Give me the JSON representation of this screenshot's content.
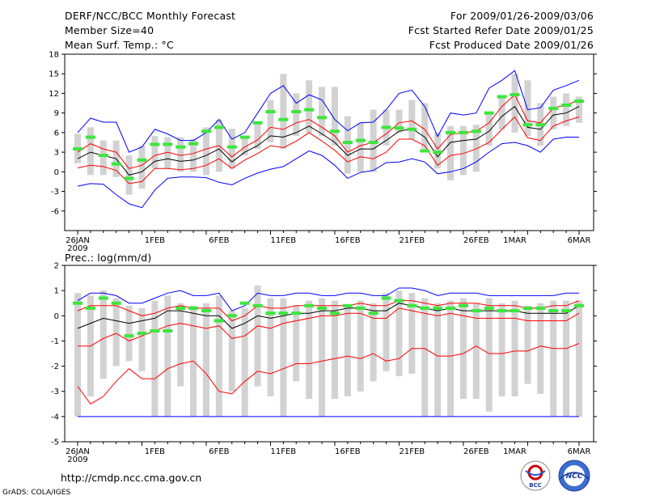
{
  "header": {
    "title": "DERF/NCC/BCC Monthly Forecast",
    "member_size": "Member Size=40",
    "period": "For 2009/01/26-2009/03/06",
    "refer_date": "Fcst Started Refer Date 2009/01/25",
    "produced_date": "Fcst Produced Date 2009/01/26"
  },
  "footer": {
    "url": "http://cmdp.ncc.cma.gov.cn",
    "credit": "GrADS: COLA/IGES",
    "logo_bcc_label": "BCC",
    "logo_ncc_label": "NCC"
  },
  "colors": {
    "max_line": "#0000ff",
    "mean_line": "#000000",
    "spread_line": "#ff0000",
    "box": "#d2d2d2",
    "marker": "#3ce63c"
  },
  "chart_data": [
    {
      "type": "line",
      "title": "Mean Surf. Temp.: °C",
      "x": [
        26,
        27,
        28,
        29,
        30,
        31,
        1,
        2,
        3,
        4,
        5,
        6,
        7,
        8,
        9,
        10,
        11,
        12,
        13,
        14,
        15,
        16,
        17,
        18,
        19,
        20,
        21,
        22,
        23,
        24,
        25,
        26,
        27,
        28,
        1,
        2,
        3,
        4,
        5,
        6
      ],
      "xtick_labels": [
        "26JAN",
        "1FEB",
        "6FEB",
        "11FEB",
        "16FEB",
        "21FEB",
        "26FEB",
        "1MAR",
        "6MAR"
      ],
      "xtick_sub": "2009",
      "ylim": [
        -9,
        18
      ],
      "yticks": [
        -6,
        -3,
        0,
        3,
        6,
        9,
        12,
        15,
        18
      ],
      "series": [
        {
          "name": "max",
          "values": [
            6.0,
            8.2,
            7.6,
            7.6,
            3.0,
            3.8,
            6.5,
            5.8,
            4.8,
            4.8,
            6.0,
            8.0,
            5.0,
            6.0,
            9.0,
            12.0,
            13.2,
            10.5,
            11.8,
            11.0,
            8.0,
            6.3,
            7.5,
            7.6,
            9.5,
            12.0,
            12.5,
            10.0,
            5.4,
            9.0,
            8.7,
            9.0,
            12.8,
            14.0,
            15.5,
            9.5,
            9.8,
            12.5,
            13.2,
            14.0
          ]
        },
        {
          "name": "upper",
          "values": [
            3.0,
            4.3,
            3.5,
            3.0,
            0.5,
            1.0,
            2.5,
            3.0,
            2.5,
            2.8,
            3.5,
            4.0,
            2.3,
            3.8,
            4.9,
            6.8,
            6.5,
            7.5,
            8.0,
            6.8,
            5.5,
            3.0,
            4.0,
            4.5,
            5.8,
            7.5,
            7.8,
            6.5,
            3.5,
            5.7,
            6.0,
            6.2,
            7.5,
            10.0,
            11.8,
            7.8,
            7.5,
            9.8,
            10.2,
            11.0
          ]
        },
        {
          "name": "mean",
          "values": [
            2.0,
            3.0,
            2.5,
            2.0,
            -0.5,
            0.0,
            1.6,
            2.0,
            1.6,
            1.8,
            2.5,
            3.5,
            1.5,
            3.0,
            4.0,
            5.5,
            5.3,
            6.0,
            7.0,
            5.8,
            4.5,
            2.5,
            3.5,
            3.5,
            4.8,
            6.2,
            6.6,
            5.3,
            2.3,
            4.5,
            4.8,
            5.0,
            6.2,
            8.5,
            10.0,
            6.8,
            6.5,
            8.7,
            9.0,
            10.0
          ]
        },
        {
          "name": "lower",
          "values": [
            0.6,
            1.0,
            0.8,
            0.2,
            -1.8,
            -1.5,
            0.5,
            0.5,
            0.3,
            0.5,
            1.0,
            2.0,
            0.5,
            1.8,
            2.8,
            4.0,
            3.7,
            4.7,
            6.0,
            4.7,
            3.3,
            1.5,
            2.3,
            2.0,
            3.0,
            5.0,
            5.0,
            4.0,
            1.0,
            2.5,
            2.8,
            3.5,
            4.5,
            6.5,
            8.4,
            5.2,
            4.8,
            7.0,
            7.8,
            8.4
          ]
        },
        {
          "name": "min",
          "values": [
            -2.2,
            -1.8,
            -1.9,
            -3.5,
            -4.9,
            -5.5,
            -2.8,
            -1.0,
            -0.8,
            -0.8,
            -0.9,
            -1.6,
            -2.0,
            -1.0,
            -0.2,
            0.4,
            0.8,
            2.0,
            3.2,
            2.5,
            1.0,
            -1.0,
            -0.1,
            0.2,
            1.4,
            1.5,
            2.0,
            1.5,
            -0.3,
            0.0,
            0.5,
            1.5,
            3.0,
            4.3,
            4.5,
            4.0,
            3.0,
            5.0,
            5.3,
            5.3
          ]
        },
        {
          "name": "box_high",
          "values": [
            5.8,
            6.8,
            4.8,
            4.8,
            2.5,
            4.0,
            5.5,
            5.3,
            5.3,
            5.0,
            6.8,
            8.0,
            6.6,
            5.3,
            7.5,
            11.0,
            15.0,
            12.0,
            14.0,
            13.0,
            13.0,
            8.5,
            7.5,
            9.5,
            9.5,
            9.5,
            11.0,
            10.5,
            6.0,
            7.0,
            7.0,
            7.2,
            9.0,
            11.5,
            15.0,
            14.0,
            10.5,
            11.5,
            12.0,
            11.5
          ]
        },
        {
          "name": "box_low",
          "values": [
            1.3,
            -0.5,
            -0.5,
            -0.8,
            -3.5,
            -2.6,
            0.5,
            0.5,
            0.0,
            0.0,
            -0.5,
            0.0,
            0.5,
            2.5,
            3.5,
            4.5,
            3.5,
            5.5,
            6.0,
            5.5,
            4.0,
            -0.3,
            0.0,
            0.0,
            4.0,
            6.0,
            5.0,
            3.5,
            0.5,
            -1.3,
            -0.5,
            0.0,
            4.0,
            6.5,
            6.0,
            5.5,
            4.0,
            6.5,
            7.0,
            7.5
          ]
        },
        {
          "name": "marker",
          "values": [
            3.5,
            5.3,
            2.5,
            1.2,
            -1.0,
            1.8,
            4.2,
            4.2,
            3.8,
            4.3,
            6.2,
            6.8,
            3.8,
            5.3,
            7.5,
            9.2,
            8.0,
            9.2,
            9.5,
            8.3,
            6.2,
            4.5,
            4.8,
            4.5,
            6.8,
            6.7,
            6.5,
            3.2,
            3.0,
            6.0,
            6.0,
            6.2,
            9.0,
            11.5,
            11.8,
            7.2,
            7.2,
            9.7,
            10.2,
            10.8
          ]
        }
      ]
    },
    {
      "type": "line",
      "title": "Prec.: log(mm/d)",
      "x": [
        26,
        27,
        28,
        29,
        30,
        31,
        1,
        2,
        3,
        4,
        5,
        6,
        7,
        8,
        9,
        10,
        11,
        12,
        13,
        14,
        15,
        16,
        17,
        18,
        19,
        20,
        21,
        22,
        23,
        24,
        25,
        26,
        27,
        28,
        1,
        2,
        3,
        4,
        5,
        6
      ],
      "xtick_labels": [
        "26JAN",
        "1FEB",
        "6FEB",
        "11FEB",
        "16FEB",
        "21FEB",
        "26FEB",
        "1MAR",
        "6MAR"
      ],
      "xtick_sub": "2009",
      "ylim": [
        -5,
        2
      ],
      "yticks": [
        -5,
        -4,
        -3,
        -2,
        -1,
        0,
        1,
        2
      ],
      "series": [
        {
          "name": "max",
          "values": [
            0.6,
            0.9,
            0.9,
            0.8,
            0.5,
            0.5,
            0.7,
            0.9,
            1.0,
            0.8,
            0.8,
            0.9,
            0.2,
            0.4,
            0.9,
            0.8,
            0.8,
            0.9,
            0.9,
            0.8,
            0.8,
            0.9,
            0.9,
            0.8,
            0.8,
            1.1,
            1.1,
            1.0,
            0.8,
            0.9,
            0.9,
            0.9,
            0.8,
            0.8,
            0.8,
            0.8,
            0.8,
            0.8,
            0.9,
            0.9
          ]
        },
        {
          "name": "upper",
          "values": [
            0.2,
            0.4,
            0.4,
            0.4,
            0.2,
            0.0,
            0.1,
            0.3,
            0.4,
            0.3,
            0.3,
            0.3,
            -0.2,
            0.0,
            0.4,
            0.3,
            0.3,
            0.4,
            0.4,
            0.4,
            0.4,
            0.4,
            0.5,
            0.4,
            0.4,
            0.6,
            0.6,
            0.5,
            0.4,
            0.5,
            0.5,
            0.5,
            0.4,
            0.4,
            0.4,
            0.3,
            0.3,
            0.4,
            0.4,
            0.6
          ]
        },
        {
          "name": "mean",
          "values": [
            -0.5,
            -0.3,
            -0.1,
            -0.2,
            -0.3,
            -0.2,
            -0.1,
            0.2,
            0.2,
            0.1,
            0.0,
            0.0,
            -0.5,
            -0.3,
            0.0,
            -0.1,
            0.0,
            0.1,
            0.1,
            0.2,
            0.2,
            0.3,
            0.3,
            0.2,
            0.2,
            0.5,
            0.4,
            0.3,
            0.2,
            0.3,
            0.2,
            0.2,
            0.2,
            0.2,
            0.2,
            0.1,
            0.1,
            0.1,
            0.1,
            0.4
          ]
        },
        {
          "name": "lower",
          "values": [
            -1.2,
            -1.2,
            -0.9,
            -0.7,
            -1.0,
            -0.8,
            -0.6,
            -0.4,
            -0.3,
            -0.4,
            -0.5,
            -0.4,
            -0.9,
            -0.8,
            -0.4,
            -0.5,
            -0.3,
            -0.2,
            -0.1,
            0.0,
            0.0,
            0.1,
            0.1,
            -0.1,
            -0.1,
            0.3,
            0.2,
            0.1,
            0.0,
            0.1,
            0.0,
            -0.1,
            -0.1,
            -0.1,
            -0.1,
            -0.2,
            -0.2,
            -0.2,
            -0.2,
            0.1
          ]
        },
        {
          "name": "min",
          "values": [
            -2.8,
            -3.5,
            -3.2,
            -2.6,
            -2.1,
            -2.5,
            -2.5,
            -2.1,
            -1.9,
            -1.8,
            -2.3,
            -3.0,
            -3.1,
            -2.6,
            -2.2,
            -2.3,
            -2.1,
            -1.9,
            -1.9,
            -1.8,
            -1.7,
            -1.6,
            -1.7,
            -1.5,
            -1.8,
            -1.7,
            -1.3,
            -1.3,
            -1.6,
            -1.6,
            -1.5,
            -1.2,
            -1.5,
            -1.5,
            -1.4,
            -1.4,
            -1.2,
            -1.3,
            -1.3,
            -1.1
          ]
        },
        {
          "name": "box_high",
          "values": [
            0.9,
            0.8,
            1.0,
            0.7,
            0.4,
            0.3,
            0.6,
            0.8,
            0.5,
            0.4,
            0.5,
            0.8,
            0.2,
            0.3,
            1.2,
            0.7,
            0.7,
            0.4,
            0.6,
            0.7,
            0.6,
            0.4,
            0.6,
            0.5,
            0.9,
            1.0,
            0.9,
            0.7,
            0.5,
            0.6,
            0.7,
            0.5,
            0.7,
            0.5,
            0.6,
            0.4,
            0.5,
            0.6,
            0.6,
            0.6
          ]
        },
        {
          "name": "box_low",
          "values": [
            -4.0,
            -3.2,
            -2.5,
            -2.0,
            -1.8,
            -2.2,
            -4.0,
            -4.0,
            -2.8,
            -4.0,
            -4.0,
            -4.0,
            -3.0,
            -4.0,
            -2.8,
            -3.2,
            -4.0,
            -2.6,
            -3.3,
            -4.0,
            -3.3,
            -3.2,
            -3.0,
            -2.6,
            -2.2,
            -2.4,
            -2.3,
            -4.0,
            -4.0,
            -4.0,
            -3.3,
            -3.3,
            -3.8,
            -3.2,
            -3.2,
            -2.7,
            -3.1,
            -4.0,
            -4.0,
            -4.0
          ]
        },
        {
          "name": "marker",
          "values": [
            0.5,
            0.3,
            0.7,
            0.5,
            -0.8,
            -0.7,
            -0.6,
            -0.6,
            0.3,
            0.3,
            0.2,
            -0.2,
            0.0,
            0.5,
            0.4,
            0.1,
            0.1,
            0.1,
            0.4,
            0.3,
            0.1,
            0.4,
            0.3,
            0.1,
            0.7,
            0.6,
            0.4,
            0.3,
            0.3,
            0.3,
            0.4,
            0.2,
            0.3,
            0.2,
            0.2,
            0.3,
            0.3,
            0.2,
            0.2,
            0.4
          ]
        },
        {
          "name": "floor",
          "values": [
            -4,
            -4,
            -4,
            -4,
            -4,
            -4,
            -4,
            -4,
            -4,
            -4,
            -4,
            -4,
            -4,
            -4,
            -4,
            -4,
            -4,
            -4,
            -4,
            -4,
            -4,
            -4,
            -4,
            -4,
            -4,
            -4,
            -4,
            -4,
            -4,
            -4,
            -4,
            -4,
            -4,
            -4,
            -4,
            -4,
            -4,
            -4,
            -4,
            -4
          ]
        }
      ]
    }
  ]
}
